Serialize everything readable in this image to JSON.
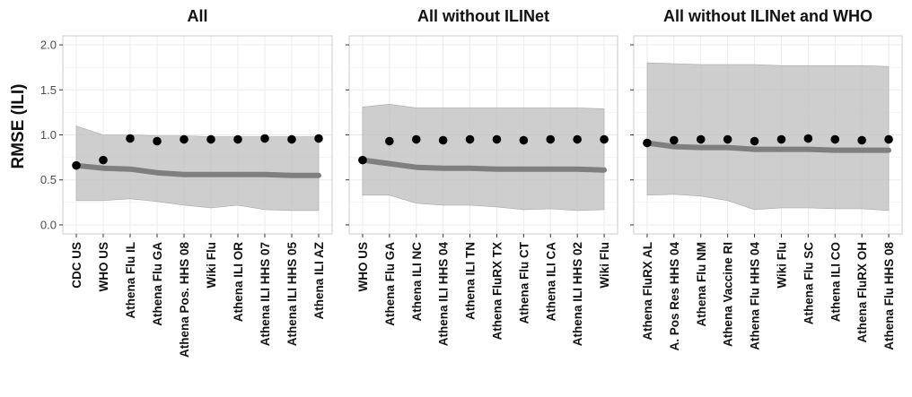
{
  "chart_data": {
    "type": "line",
    "ylabel": "RMSE (ILI)",
    "ylim": [
      -0.1,
      2.1
    ],
    "yticks": [
      "0.0",
      "0.5",
      "1.0",
      "1.5",
      "2.0"
    ],
    "grid": true,
    "colors": {
      "band": "#bdbdbd",
      "line": "#7f7f7f",
      "point": "#000000",
      "grid": "#ebebeb",
      "border": "#cccccc"
    },
    "panels": [
      {
        "title": "All",
        "categories": [
          "CDC US",
          "WHO US",
          "Athena Flu IL",
          "Athena Flu GA",
          "Athena Pos. HHS 08",
          "Wiki Flu",
          "Athena ILI OR",
          "Athena ILI HHS 07",
          "Athena ILI HHS 05",
          "Athena ILI AZ"
        ],
        "series": [
          {
            "type": "point",
            "values": [
              0.66,
              0.72,
              0.96,
              0.93,
              0.95,
              0.95,
              0.95,
              0.96,
              0.95,
              0.96
            ]
          },
          {
            "type": "line",
            "values": [
              0.66,
              0.63,
              0.62,
              0.58,
              0.56,
              0.56,
              0.56,
              0.56,
              0.55,
              0.55
            ]
          },
          {
            "type": "band",
            "lower": [
              0.27,
              0.27,
              0.29,
              0.26,
              0.22,
              0.19,
              0.22,
              0.17,
              0.16,
              0.16
            ],
            "upper": [
              1.1,
              1.0,
              1.0,
              0.99,
              0.99,
              0.98,
              0.98,
              0.98,
              0.98,
              0.98
            ]
          }
        ]
      },
      {
        "title": "All without ILINet",
        "categories": [
          "WHO US",
          "Athena Flu GA",
          "Athena ILI NC",
          "Athena ILI HHS 04",
          "Athena ILI TN",
          "Athena FluRX TX",
          "Athena Flu CT",
          "Athena ILI CA",
          "Athena ILI HHS 02",
          "Wiki Flu"
        ],
        "series": [
          {
            "type": "point",
            "values": [
              0.72,
              0.93,
              0.95,
              0.94,
              0.95,
              0.95,
              0.94,
              0.95,
              0.95,
              0.95
            ]
          },
          {
            "type": "line",
            "values": [
              0.72,
              0.68,
              0.64,
              0.63,
              0.63,
              0.62,
              0.62,
              0.62,
              0.62,
              0.61
            ]
          },
          {
            "type": "band",
            "lower": [
              0.33,
              0.33,
              0.24,
              0.22,
              0.22,
              0.2,
              0.17,
              0.18,
              0.16,
              0.17
            ],
            "upper": [
              1.31,
              1.34,
              1.3,
              1.3,
              1.3,
              1.3,
              1.3,
              1.3,
              1.3,
              1.29
            ]
          }
        ]
      },
      {
        "title": "All without ILINet and WHO",
        "categories": [
          "Athena FluRX AL",
          "A. Pos Res HHS 04",
          "Athena Flu NM",
          "Athena Vaccine RI",
          "Athena Flu HHS 04",
          "Wiki Flu",
          "Athena Flu SC",
          "Athena ILI CO",
          "Athena FluRX OH",
          "Athena Flu HHS 08"
        ],
        "series": [
          {
            "type": "point",
            "values": [
              0.91,
              0.94,
              0.95,
              0.95,
              0.93,
              0.95,
              0.96,
              0.95,
              0.94,
              0.95
            ]
          },
          {
            "type": "line",
            "values": [
              0.91,
              0.87,
              0.86,
              0.86,
              0.84,
              0.84,
              0.84,
              0.83,
              0.83,
              0.83
            ]
          },
          {
            "type": "band",
            "lower": [
              0.33,
              0.34,
              0.32,
              0.27,
              0.17,
              0.19,
              0.19,
              0.18,
              0.18,
              0.16
            ],
            "upper": [
              1.8,
              1.79,
              1.78,
              1.78,
              1.78,
              1.77,
              1.77,
              1.77,
              1.77,
              1.76
            ]
          }
        ]
      }
    ]
  }
}
